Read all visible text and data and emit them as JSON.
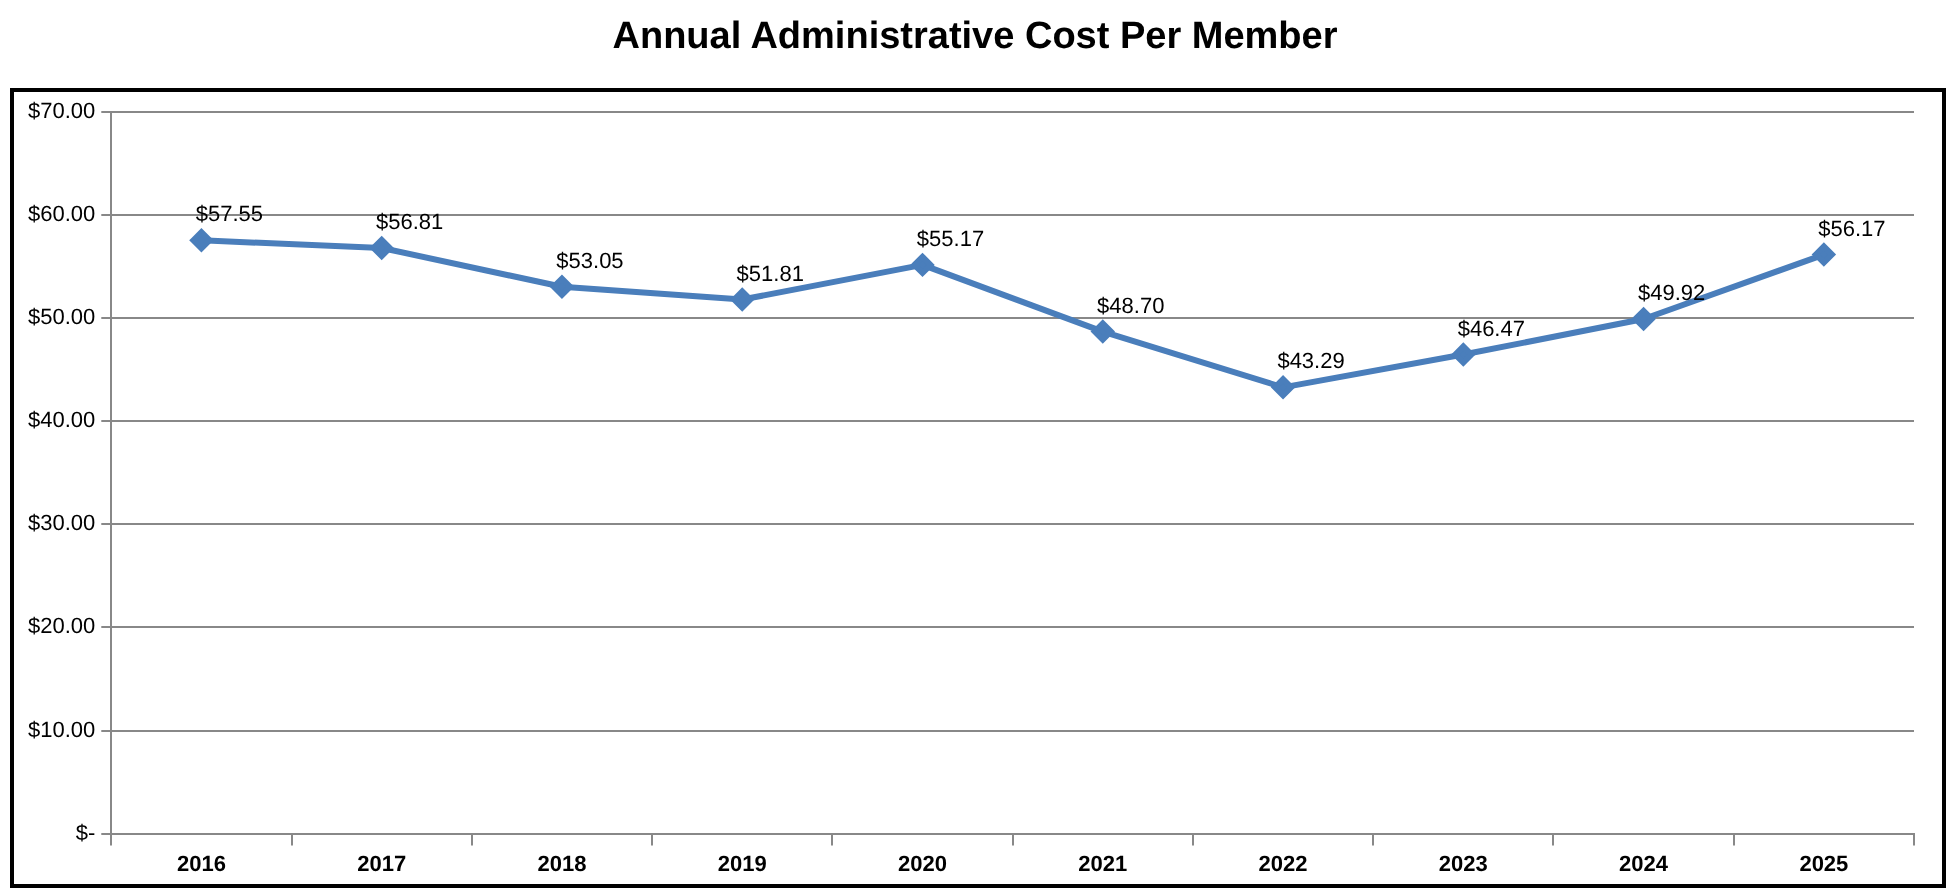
{
  "chart_data": {
    "type": "line",
    "title": "Annual Administrative Cost Per Member",
    "categories": [
      "2016",
      "2017",
      "2018",
      "2019",
      "2020",
      "2021",
      "2022",
      "2023",
      "2024",
      "2025"
    ],
    "values": [
      57.55,
      56.81,
      53.05,
      51.81,
      55.17,
      48.7,
      43.29,
      46.47,
      49.92,
      56.17
    ],
    "value_labels": [
      "$57.55",
      "$56.81",
      "$53.05",
      "$51.81",
      "$55.17",
      "$48.70",
      "$43.29",
      "$46.47",
      "$49.92",
      "$56.17"
    ],
    "color": "#4a7ebb",
    "marker": "diamond",
    "line_style": "solid",
    "grid": "y",
    "legend": false,
    "ylim": [
      0,
      70
    ],
    "yticks": [
      {
        "value": 0,
        "label": "$-"
      },
      {
        "value": 10,
        "label": "$10.00"
      },
      {
        "value": 20,
        "label": "$20.00"
      },
      {
        "value": 30,
        "label": "$30.00"
      },
      {
        "value": 40,
        "label": "$40.00"
      },
      {
        "value": 50,
        "label": "$50.00"
      },
      {
        "value": 60,
        "label": "$60.00"
      },
      {
        "value": 70,
        "label": "$70.00"
      }
    ]
  }
}
